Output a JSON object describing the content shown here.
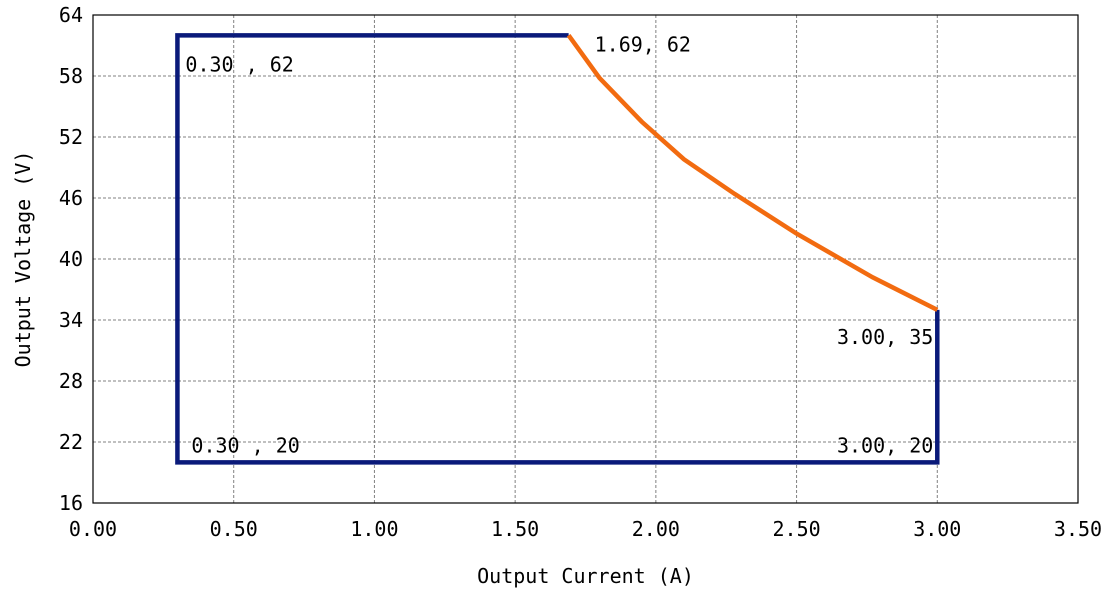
{
  "chart_data": {
    "type": "line",
    "title": "",
    "xlabel": "Output Current (A)",
    "ylabel": "Output Voltage (V)",
    "xlim": [
      0,
      3.5
    ],
    "ylim": [
      16,
      64
    ],
    "x_ticks": [
      0,
      0.5,
      1.0,
      1.5,
      2.0,
      2.5,
      3.0,
      3.5
    ],
    "x_tick_labels": [
      "0.00",
      "0.50",
      "1.00",
      "1.50",
      "2.00",
      "2.50",
      "3.00",
      "3.50"
    ],
    "y_ticks": [
      16,
      22,
      28,
      34,
      40,
      46,
      52,
      58,
      64
    ],
    "y_tick_labels": [
      "16",
      "22",
      "28",
      "34",
      "40",
      "46",
      "52",
      "58",
      "64"
    ],
    "grid": true,
    "series": [
      {
        "color": "#0a1a7a",
        "x": [
          1.69,
          0.3,
          0.3,
          3.0,
          3.0
        ],
        "y": [
          62,
          62,
          20,
          20,
          35
        ]
      },
      {
        "color": "#f26b10",
        "x": [
          1.69,
          1.8,
          1.95,
          2.1,
          2.28,
          2.5,
          2.77,
          3.0
        ],
        "y": [
          62,
          57.8,
          53.5,
          49.8,
          46.4,
          42.5,
          38.2,
          35
        ]
      }
    ],
    "annotations": [
      {
        "text": "0.30 , 62",
        "x": 0.3,
        "y": 62
      },
      {
        "text": "1.69, 62",
        "x": 1.69,
        "y": 62
      },
      {
        "text": "3.00, 35",
        "x": 3.0,
        "y": 35
      },
      {
        "text": "0.30 , 20",
        "x": 0.3,
        "y": 20
      },
      {
        "text": "3.00, 20",
        "x": 3.0,
        "y": 20
      }
    ]
  }
}
